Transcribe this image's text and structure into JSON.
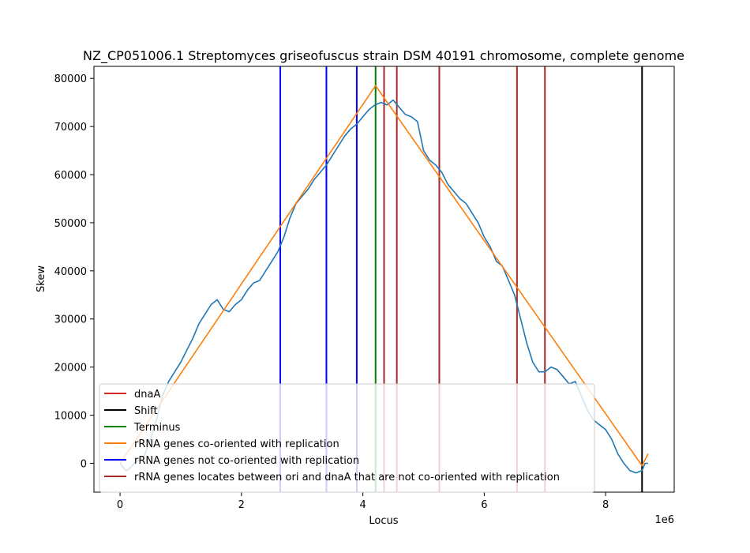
{
  "chart_data": {
    "type": "line",
    "title": "NZ_CP051006.1 Streptomyces griseofuscus strain DSM 40191 chromosome, complete genome",
    "xlabel": "Locus",
    "ylabel": "Skew",
    "x_offset_label": "1e6",
    "xlim": [
      -0.43,
      9.13
    ],
    "ylim": [
      -6000,
      82500
    ],
    "x_ticks": [
      0,
      2,
      4,
      6,
      8
    ],
    "x_tick_labels": [
      "0",
      "2",
      "4",
      "6",
      "8"
    ],
    "y_ticks": [
      0,
      10000,
      20000,
      30000,
      40000,
      50000,
      60000,
      70000,
      80000
    ],
    "y_tick_labels": [
      "0",
      "10000",
      "20000",
      "30000",
      "40000",
      "50000",
      "60000",
      "70000",
      "80000"
    ],
    "legend_position": "lower-left",
    "legend": [
      {
        "label": "dnaA",
        "color": "#d62728"
      },
      {
        "label": "Shift",
        "color": "#000000"
      },
      {
        "label": "Terminus",
        "color": "#008000"
      },
      {
        "label": "rRNA genes co-oriented with replication",
        "color": "#ff7f0e"
      },
      {
        "label": "rRNA genes not co-oriented with replication",
        "color": "#0000ff"
      },
      {
        "label": "rRNA genes locates between ori and dnaA that are not co-oriented with replication",
        "color": "#a52a2a"
      }
    ],
    "series": [
      {
        "name": "",
        "color": "#1f77b4",
        "x": [
          0,
          0.05,
          0.1,
          0.15,
          0.2,
          0.25,
          0.3,
          0.4,
          0.5,
          0.6,
          0.7,
          0.8,
          0.9,
          1.0,
          1.1,
          1.2,
          1.3,
          1.4,
          1.5,
          1.6,
          1.7,
          1.8,
          1.9,
          2.0,
          2.1,
          2.2,
          2.3,
          2.4,
          2.5,
          2.6,
          2.7,
          2.8,
          2.9,
          3.0,
          3.1,
          3.2,
          3.3,
          3.4,
          3.5,
          3.6,
          3.7,
          3.8,
          3.9,
          4.0,
          4.1,
          4.2,
          4.3,
          4.4,
          4.5,
          4.6,
          4.7,
          4.8,
          4.9,
          5.0,
          5.1,
          5.2,
          5.3,
          5.4,
          5.5,
          5.6,
          5.7,
          5.8,
          5.9,
          6.0,
          6.1,
          6.2,
          6.3,
          6.4,
          6.5,
          6.6,
          6.7,
          6.8,
          6.9,
          7.0,
          7.1,
          7.2,
          7.3,
          7.4,
          7.5,
          7.6,
          7.7,
          7.8,
          7.9,
          8.0,
          8.1,
          8.2,
          8.3,
          8.4,
          8.5,
          8.6,
          8.65,
          8.7
        ],
        "y": [
          0,
          -800,
          -1500,
          -1200,
          -500,
          300,
          500,
          1500,
          5000,
          9000,
          14000,
          17000,
          19000,
          21000,
          23500,
          26000,
          29000,
          31000,
          33000,
          34000,
          32000,
          31500,
          33000,
          34000,
          36000,
          37500,
          38000,
          40000,
          42000,
          44000,
          47000,
          51000,
          54000,
          55500,
          57000,
          59000,
          60500,
          62000,
          64000,
          66000,
          68000,
          69500,
          70500,
          72000,
          73500,
          74500,
          75000,
          74500,
          75500,
          74000,
          72500,
          72000,
          71000,
          65000,
          63000,
          62000,
          60500,
          58000,
          56500,
          55000,
          54000,
          52000,
          50000,
          47000,
          45000,
          42000,
          41000,
          38000,
          35000,
          30000,
          25000,
          21000,
          19000,
          19000,
          20000,
          19500,
          18000,
          16500,
          17000,
          14000,
          11000,
          9000,
          8000,
          7000,
          5000,
          2000,
          0,
          -1500,
          -2000,
          -1500,
          0,
          0
        ]
      },
      {
        "name": "rRNA genes co-oriented with replication",
        "color": "#ff7f0e",
        "x": [
          0,
          4.21,
          8.6,
          8.7
        ],
        "y": [
          0,
          78500,
          -500,
          2000
        ]
      }
    ],
    "vertical_lines": [
      {
        "x": 2.64,
        "color": "#0000ff"
      },
      {
        "x": 3.4,
        "color": "#0000ff"
      },
      {
        "x": 3.9,
        "color": "#0000ff"
      },
      {
        "x": 4.21,
        "color": "#008000"
      },
      {
        "x": 4.35,
        "color": "#a52a2a"
      },
      {
        "x": 4.56,
        "color": "#a52a2a"
      },
      {
        "x": 5.26,
        "color": "#a52a2a"
      },
      {
        "x": 6.54,
        "color": "#a52a2a"
      },
      {
        "x": 7.0,
        "color": "#a52a2a"
      },
      {
        "x": 8.6,
        "color": "#000000"
      }
    ]
  }
}
